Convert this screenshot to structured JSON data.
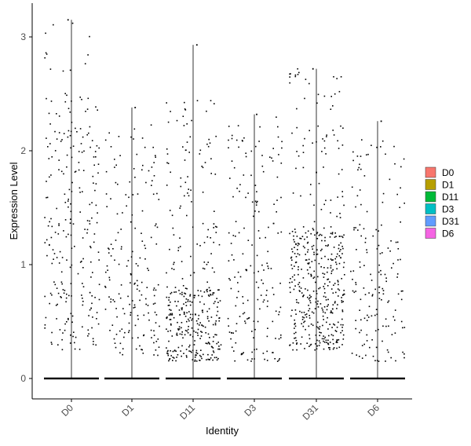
{
  "chart_data": {
    "type": "scatter",
    "subtype": "violin_jitter",
    "xlabel": "Identity",
    "ylabel": "Expression Level",
    "ylim": [
      -0.17,
      3.3
    ],
    "yticks": [
      0,
      1,
      2,
      3
    ],
    "categories": [
      "D0",
      "D1",
      "D11",
      "D3",
      "D31",
      "D6"
    ],
    "series": [
      {
        "name": "D0",
        "color": "#F8766D",
        "max": 3.15,
        "zero_fraction": 0.72,
        "nonzero_bands": [
          [
            0.25,
            1.0,
            0.35
          ],
          [
            1.0,
            2.5,
            0.6
          ],
          [
            2.5,
            3.15,
            0.05
          ]
        ]
      },
      {
        "name": "D1",
        "color": "#B79F00",
        "max": 2.38,
        "zero_fraction": 0.8,
        "nonzero_bands": [
          [
            0.2,
            0.8,
            0.45
          ],
          [
            0.8,
            2.3,
            0.55
          ]
        ]
      },
      {
        "name": "D11",
        "color": "#00BA38",
        "max": 2.93,
        "zero_fraction": 0.6,
        "nonzero_bands": [
          [
            0.15,
            0.8,
            0.72
          ],
          [
            0.8,
            2.45,
            0.28
          ]
        ]
      },
      {
        "name": "D3",
        "color": "#00BFC4",
        "max": 2.32,
        "zero_fraction": 0.8,
        "nonzero_bands": [
          [
            0.15,
            1.0,
            0.55
          ],
          [
            1.0,
            2.3,
            0.45
          ]
        ]
      },
      {
        "name": "D31",
        "color": "#619CFF",
        "max": 2.72,
        "zero_fraction": 0.5,
        "nonzero_bands": [
          [
            0.25,
            1.3,
            0.82
          ],
          [
            1.3,
            2.72,
            0.18
          ]
        ]
      },
      {
        "name": "D6",
        "color": "#F564E3",
        "max": 2.26,
        "zero_fraction": 0.82,
        "nonzero_bands": [
          [
            0.15,
            1.0,
            0.6
          ],
          [
            1.0,
            2.1,
            0.4
          ]
        ]
      }
    ],
    "legend": {
      "position": "right",
      "entries": [
        "D0",
        "D1",
        "D11",
        "D3",
        "D31",
        "D6"
      ]
    },
    "grid": false,
    "x_tick_rotation": -45
  }
}
